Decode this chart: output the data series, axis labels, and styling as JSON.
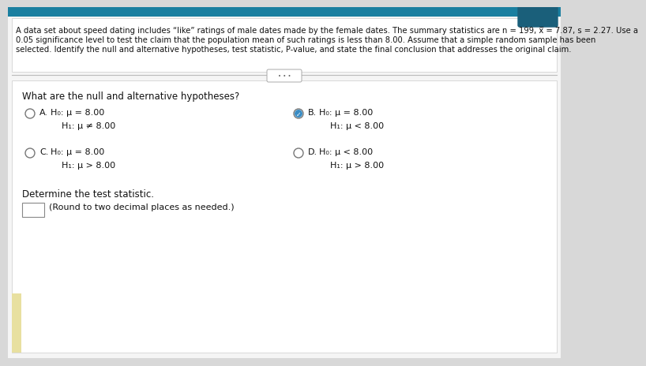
{
  "bg_color": "#d8d8d8",
  "top_bar_color": "#1a7fa0",
  "panel_color": "#f5f5f5",
  "white_panel_color": "#ffffff",
  "header_line1": "A data set about speed dating includes “like” ratings of male dates made by the female dates. The summary statistics are n = 199, x̅ = 7.87, s = 2.27. Use a",
  "header_line2": "0.05 significance level to test the claim that the population mean of such ratings is less than 8.00. Assume that a simple random sample has been",
  "header_line3": "selected. Identify the null and alternative hypotheses, test statistic, P-value, and state the final conclusion that addresses the original claim.",
  "question": "What are the null and alternative hypotheses?",
  "option_A_label": "A.",
  "option_A_H0": "H₀: μ = 8.00",
  "option_A_H1": "H₁: μ ≠ 8.00",
  "option_B_label": "B.",
  "option_B_H0": "H₀: μ = 8.00",
  "option_B_H1": "H₁: μ < 8.00",
  "option_C_label": "C.",
  "option_C_H0": "H₀: μ = 8.00",
  "option_C_H1": "H₁: μ > 8.00",
  "option_D_label": "D.",
  "option_D_H0": "H₀: μ < 8.00",
  "option_D_H1": "H₁: μ > 8.00",
  "determine_text": "Determine the test statistic.",
  "round_text": "(Round to two decimal places as needed.)",
  "text_color": "#111111",
  "header_fontsize": 7.2,
  "body_fontsize": 8.5,
  "small_fontsize": 8.0,
  "yellow_bar_color": "#e8e0a0",
  "separator_color": "#bbbbbb",
  "radio_edge_color": "#777777",
  "selected_fill": "#3a8cc4",
  "dots_color": "#666666"
}
